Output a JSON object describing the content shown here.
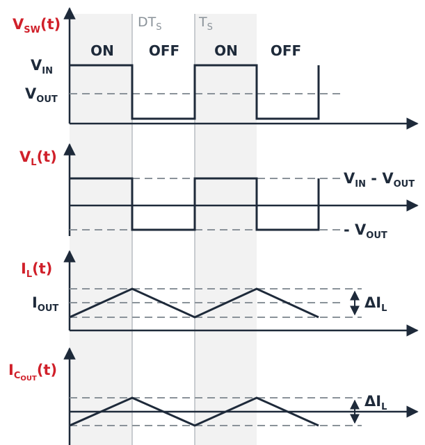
{
  "colors": {
    "signal": "#1e2a3a",
    "label_red": "#d0202a",
    "reference_dashed": "#8a9299",
    "shade": "#f2f2f2"
  },
  "markers": {
    "dts": {
      "main": "DT",
      "sub": "S"
    },
    "ts": {
      "main": "T",
      "sub": "S"
    }
  },
  "phases": [
    "ON",
    "OFF",
    "ON",
    "OFF"
  ],
  "panels": {
    "vsw": {
      "label": {
        "main": "V",
        "sub": "SW",
        "tail": "(t)"
      },
      "vin": {
        "main": "V",
        "sub": "IN"
      },
      "vout": {
        "main": "V",
        "sub": "OUT"
      }
    },
    "vl": {
      "label": {
        "main": "V",
        "sub": "L",
        "tail": "(t)"
      },
      "upper": {
        "a_main": "V",
        "a_sub": "IN",
        "sep": " - ",
        "b_main": "V",
        "b_sub": "OUT"
      },
      "lower": {
        "prefix": "- ",
        "main": "V",
        "sub": "OUT"
      }
    },
    "il": {
      "label": {
        "main": "I",
        "sub": "L",
        "tail": "(t)"
      },
      "iout": {
        "main": "I",
        "sub": "OUT"
      },
      "ripple": {
        "main": "ΔI",
        "sub": "L"
      }
    },
    "icout": {
      "label": {
        "main": "I",
        "sub": "C",
        "subsub": "OUT",
        "tail": "(t)"
      },
      "ripple": {
        "main": "ΔI",
        "sub": "L"
      }
    }
  }
}
